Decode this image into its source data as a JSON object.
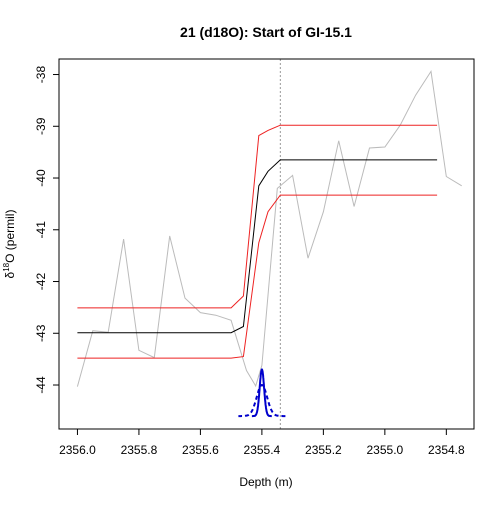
{
  "chart_data": {
    "type": "line",
    "title": "21 (d18O): Start of GI-15.1",
    "xlabel": "Depth (m)",
    "ylabel_main": "δ",
    "ylabel_sup": "18",
    "ylabel_rest": "O (permil)",
    "xlim": [
      2356.06,
      2354.71
    ],
    "ylim": [
      -44.85,
      -37.7
    ],
    "x_reversed": true,
    "x_ticks": [
      {
        "value": 2356.0,
        "label": "2356.0"
      },
      {
        "value": 2355.8,
        "label": "2355.8"
      },
      {
        "value": 2355.6,
        "label": "2355.6"
      },
      {
        "value": 2355.4,
        "label": "2355.4"
      },
      {
        "value": 2355.2,
        "label": "2355.2"
      },
      {
        "value": 2355.0,
        "label": "2355.0"
      },
      {
        "value": 2354.8,
        "label": "2354.8"
      }
    ],
    "y_ticks": [
      {
        "value": -38,
        "label": "-38"
      },
      {
        "value": -39,
        "label": "-39"
      },
      {
        "value": -40,
        "label": "-40"
      },
      {
        "value": -41,
        "label": "-41"
      },
      {
        "value": -42,
        "label": "-42"
      },
      {
        "value": -43,
        "label": "-43"
      },
      {
        "value": -44,
        "label": "-44"
      }
    ],
    "vline": {
      "x": 2355.34,
      "color": "#999999"
    },
    "series": [
      {
        "role": "raw",
        "color": "#bbbbbb",
        "width": 1,
        "x": [
          2356.0,
          2355.95,
          2355.9,
          2355.85,
          2355.8,
          2355.75,
          2355.7,
          2355.65,
          2355.6,
          2355.55,
          2355.5,
          2355.45,
          2355.42,
          2355.4,
          2355.35,
          2355.3,
          2355.25,
          2355.2,
          2355.15,
          2355.1,
          2355.05,
          2355.0,
          2354.95,
          2354.9,
          2354.85,
          2354.8,
          2354.75
        ],
        "y": [
          -44.03,
          -42.95,
          -42.98,
          -41.18,
          -43.33,
          -43.47,
          -41.12,
          -42.32,
          -42.6,
          -42.65,
          -42.75,
          -43.72,
          -44.02,
          -43.62,
          -40.2,
          -39.95,
          -41.55,
          -40.65,
          -39.28,
          -40.55,
          -39.42,
          -39.4,
          -38.98,
          -38.4,
          -37.94,
          -39.97,
          -40.15
        ]
      },
      {
        "role": "ramp-fit",
        "color": "#000000",
        "width": 1,
        "x": [
          2356.0,
          2355.5,
          2355.46,
          2355.41,
          2355.38,
          2355.34,
          2354.83
        ],
        "y": [
          -42.99,
          -42.99,
          -42.87,
          -40.15,
          -39.87,
          -39.65,
          -39.65
        ]
      },
      {
        "role": "upper-bound",
        "color": "#ee2222",
        "width": 1,
        "x": [
          2356.0,
          2355.5,
          2355.46,
          2355.41,
          2355.38,
          2355.34,
          2354.83
        ],
        "y": [
          -42.51,
          -42.51,
          -42.28,
          -39.18,
          -39.08,
          -38.98,
          -38.98
        ]
      },
      {
        "role": "lower-bound",
        "color": "#ee2222",
        "width": 1,
        "x": [
          2356.0,
          2355.5,
          2355.46,
          2355.41,
          2355.38,
          2355.34,
          2354.83
        ],
        "y": [
          -43.48,
          -43.48,
          -43.45,
          -41.25,
          -40.65,
          -40.33,
          -40.33
        ]
      }
    ],
    "densities": [
      {
        "style": "solid",
        "color": "#0000cc",
        "center": 2355.4,
        "sigma": 0.0072,
        "base": -44.6,
        "peak": -43.7
      },
      {
        "style": "dashed",
        "color": "#0000cc",
        "center": 2355.4,
        "sigma": 0.017,
        "base": -44.6,
        "peak": -44.0
      }
    ]
  }
}
